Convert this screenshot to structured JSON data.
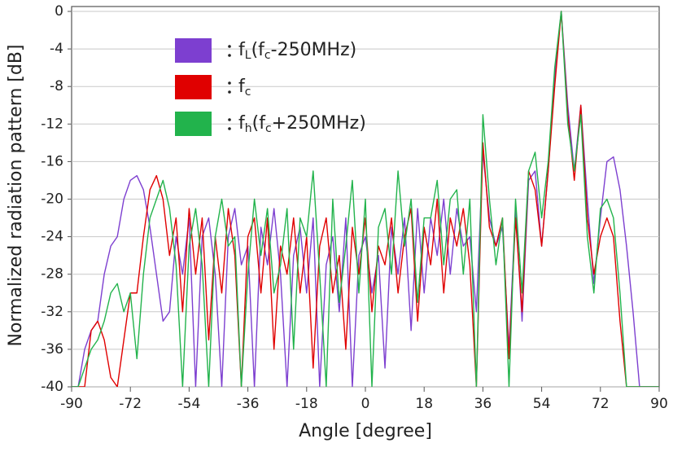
{
  "chart_data": {
    "type": "line",
    "xlabel": "Angle [degree]",
    "ylabel": "Normalized radiation pattern [dB]",
    "xlim": [
      -90,
      90
    ],
    "xticks": [
      -90,
      -72,
      -54,
      -36,
      -18,
      0,
      18,
      36,
      54,
      72,
      90
    ],
    "ylim": [
      -40,
      0
    ],
    "yticks": [
      0,
      -4,
      -8,
      -12,
      -16,
      -20,
      -24,
      -28,
      -32,
      -36,
      -40
    ],
    "grid": true,
    "x": [
      -90,
      -88,
      -86,
      -84,
      -82,
      -80,
      -78,
      -76,
      -74,
      -72,
      -70,
      -68,
      -66,
      -64,
      -62,
      -60,
      -58,
      -56,
      -54,
      -52,
      -50,
      -48,
      -46,
      -44,
      -42,
      -40,
      -38,
      -36,
      -34,
      -32,
      -30,
      -28,
      -26,
      -24,
      -22,
      -20,
      -18,
      -16,
      -14,
      -12,
      -10,
      -8,
      -6,
      -4,
      -2,
      0,
      2,
      4,
      6,
      8,
      10,
      12,
      14,
      16,
      18,
      20,
      22,
      24,
      26,
      28,
      30,
      32,
      34,
      36,
      38,
      40,
      42,
      44,
      46,
      48,
      50,
      52,
      54,
      56,
      58,
      60,
      62,
      64,
      66,
      68,
      70,
      72,
      74,
      76,
      78,
      80,
      82,
      84,
      86,
      88,
      90
    ],
    "series": [
      {
        "name": "fL(fc-250MHz)",
        "color": "#7d3fd0",
        "values": [
          -40,
          -40,
          -36,
          -34,
          -33,
          -28,
          -25,
          -24,
          -20,
          -18,
          -17.5,
          -19,
          -23,
          -28,
          -33,
          -32,
          -24,
          -28,
          -22,
          -40,
          -24,
          -22,
          -28,
          -40,
          -24,
          -21,
          -27,
          -25,
          -40,
          -23,
          -27,
          -21,
          -28,
          -40,
          -26,
          -23,
          -30,
          -22,
          -40,
          -27,
          -24,
          -32,
          -22,
          -40,
          -26,
          -24,
          -30,
          -26,
          -38,
          -23,
          -28,
          -22,
          -34,
          -21,
          -30,
          -22,
          -26,
          -20,
          -28,
          -21,
          -25,
          -24,
          -32,
          -15,
          -22,
          -25,
          -23,
          -36,
          -21,
          -33,
          -18,
          -17,
          -25,
          -17,
          -7,
          0,
          -10,
          -17,
          -10,
          -20,
          -29,
          -22,
          -16,
          -15.5,
          -19,
          -25,
          -32,
          -40,
          -40,
          -40,
          -40
        ]
      },
      {
        "name": "fc",
        "color": "#e00000",
        "values": [
          -40,
          -40,
          -40,
          -34,
          -33,
          -35,
          -39,
          -40,
          -35,
          -30,
          -30,
          -24,
          -19,
          -17.5,
          -20,
          -26,
          -22,
          -32,
          -21,
          -28,
          -22,
          -35,
          -24,
          -30,
          -21,
          -26,
          -40,
          -24,
          -22,
          -30,
          -22,
          -36,
          -25,
          -28,
          -22,
          -30,
          -24,
          -38,
          -25,
          -22,
          -30,
          -26,
          -36,
          -23,
          -28,
          -22,
          -32,
          -25,
          -27,
          -22,
          -30,
          -24,
          -21,
          -33,
          -23,
          -27,
          -20,
          -30,
          -22,
          -25,
          -21,
          -27,
          -40,
          -14,
          -23,
          -25,
          -22,
          -37,
          -22,
          -32,
          -17,
          -19,
          -25,
          -17,
          -8,
          0,
          -11,
          -18,
          -10,
          -22,
          -28,
          -24,
          -22,
          -24,
          -33,
          -40,
          -40,
          -40,
          -40,
          -40,
          -40
        ]
      },
      {
        "name": "fh(fc+250MHz)",
        "color": "#22b34c",
        "values": [
          -40,
          -40,
          -38,
          -36,
          -35,
          -33,
          -30,
          -29,
          -32,
          -30,
          -37,
          -28,
          -22,
          -20,
          -18,
          -21,
          -27,
          -40,
          -25,
          -21,
          -27,
          -40,
          -24,
          -20,
          -25,
          -24,
          -40,
          -28,
          -20,
          -26,
          -21,
          -30,
          -27,
          -21,
          -36,
          -22,
          -24,
          -17,
          -28,
          -40,
          -20,
          -31,
          -25,
          -18,
          -30,
          -20,
          -40,
          -23,
          -21,
          -28,
          -17,
          -25,
          -20,
          -31,
          -22,
          -22,
          -18,
          -27,
          -20,
          -19,
          -28,
          -20,
          -40,
          -11,
          -20,
          -27,
          -22,
          -40,
          -20,
          -30,
          -17,
          -15,
          -22,
          -16,
          -6,
          0,
          -12,
          -17,
          -11,
          -24,
          -30,
          -21,
          -20,
          -22,
          -30,
          -40,
          -40,
          -40,
          -40,
          -40,
          -40
        ]
      }
    ]
  }
}
